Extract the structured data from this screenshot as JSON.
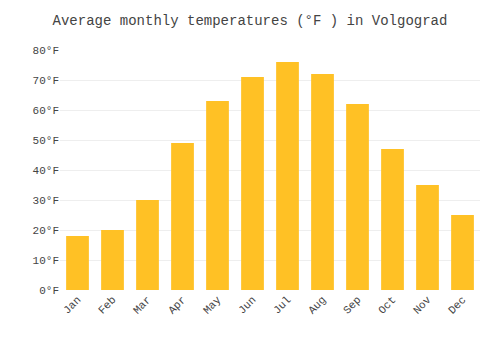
{
  "chart_data": {
    "type": "bar",
    "title": "Average monthly temperatures (°F ) in Volgograd",
    "categories": [
      "Jan",
      "Feb",
      "Mar",
      "Apr",
      "May",
      "Jun",
      "Jul",
      "Aug",
      "Sep",
      "Oct",
      "Nov",
      "Dec"
    ],
    "values": [
      18,
      20,
      30,
      49,
      63,
      71,
      76,
      72,
      62,
      47,
      35,
      25
    ],
    "color": "#FFC125",
    "ylim": [
      0,
      80
    ],
    "yticks": [
      {
        "value": 0,
        "label": "0°F"
      },
      {
        "value": 10,
        "label": "10°F"
      },
      {
        "value": 20,
        "label": "20°F"
      },
      {
        "value": 30,
        "label": "30°F"
      },
      {
        "value": 40,
        "label": "40°F"
      },
      {
        "value": 50,
        "label": "50°F"
      },
      {
        "value": 60,
        "label": "60°F"
      },
      {
        "value": 70,
        "label": "70°F"
      },
      {
        "value": 80,
        "label": "80°F"
      }
    ],
    "grid": true
  }
}
